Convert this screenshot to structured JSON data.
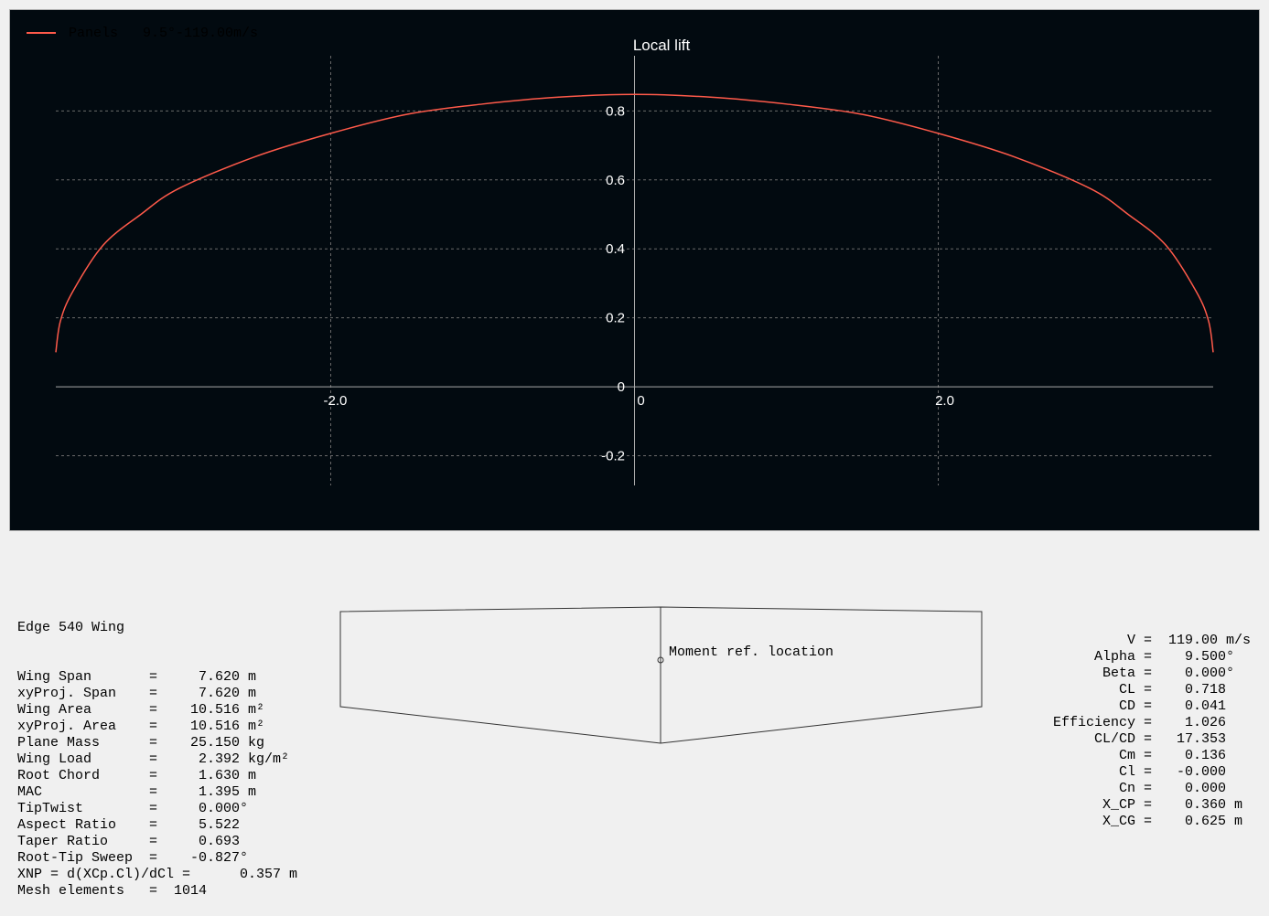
{
  "chart_data": {
    "type": "line",
    "title": "Local lift",
    "legend": {
      "placement": "top-left",
      "entries": [
        {
          "label": "Panels   9.5°-119.00m/s",
          "color": "#ff5a4a"
        }
      ]
    },
    "xlim": [
      -3.81,
      3.81
    ],
    "ylim": [
      -0.286,
      0.96
    ],
    "grid": true,
    "x_ticks": [
      {
        "value": -2.0,
        "label": "-2.0"
      },
      {
        "value": 0,
        "label": "0"
      },
      {
        "value": 2.0,
        "label": "2.0"
      }
    ],
    "y_ticks": [
      {
        "value": 0.8,
        "label": "0.8"
      },
      {
        "value": 0.6,
        "label": "0.6"
      },
      {
        "value": 0.4,
        "label": "0.4"
      },
      {
        "value": 0.2,
        "label": "0.2"
      },
      {
        "value": 0,
        "label": "0"
      },
      {
        "value": -0.2,
        "label": "-0.2"
      }
    ],
    "series": [
      {
        "name": "Panels   9.5°-119.00m/s",
        "color": "#ff5a4a",
        "x": [
          -3.81,
          -3.78,
          -3.7,
          -3.5,
          -3.25,
          -3.0,
          -2.5,
          -2.0,
          -1.5,
          -1.0,
          -0.5,
          0,
          0.5,
          1.0,
          1.5,
          2.0,
          2.5,
          3.0,
          3.25,
          3.5,
          3.7,
          3.78,
          3.81
        ],
        "y": [
          0.1,
          0.19,
          0.275,
          0.41,
          0.5,
          0.575,
          0.667,
          0.735,
          0.79,
          0.82,
          0.84,
          0.848,
          0.84,
          0.82,
          0.79,
          0.735,
          0.667,
          0.575,
          0.5,
          0.41,
          0.275,
          0.19,
          0.1
        ]
      }
    ]
  },
  "left_info": {
    "title": "Edge 540 Wing",
    "lines": [
      "Wing Span       =     7.620 m",
      "xyProj. Span    =     7.620 m",
      "Wing Area       =    10.516 m²",
      "xyProj. Area    =    10.516 m²",
      "Plane Mass      =    25.150 kg",
      "Wing Load       =     2.392 kg/m²",
      "Root Chord      =     1.630 m",
      "MAC             =     1.395 m",
      "TipTwist        =     0.000°",
      "Aspect Ratio    =     5.522",
      "Taper Ratio     =     0.693",
      "Root-Tip Sweep  =    -0.827°",
      "XNP = d(XCp.Cl)/dCl =      0.357 m",
      "Mesh elements   =  1014"
    ]
  },
  "right_info": {
    "lines": [
      "         V =  119.00 m/s",
      "     Alpha =    9.500°",
      "      Beta =    0.000°",
      "        CL =    0.718",
      "        CD =    0.041",
      "Efficiency =    1.026",
      "     CL/CD =   17.353",
      "        Cm =    0.136",
      "        Cl =   -0.000",
      "        Cn =    0.000",
      "      X_CP =    0.360 m",
      "      X_CG =    0.625 m"
    ]
  },
  "planform": {
    "moment_ref_label": "Moment ref. location"
  }
}
